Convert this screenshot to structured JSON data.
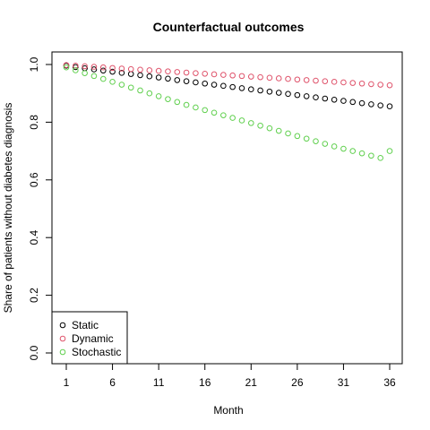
{
  "chart_data": {
    "type": "scatter",
    "title": "Counterfactual outcomes",
    "xlabel": "Month",
    "ylabel": "Share of patients without diabetes diagnosis",
    "xlim": [
      1,
      36
    ],
    "ylim": [
      0,
      1
    ],
    "x_ticks": [
      1,
      6,
      11,
      16,
      21,
      26,
      31,
      36
    ],
    "x_tick_labels": [
      "1",
      "6",
      "11",
      "16",
      "21",
      "26",
      "31",
      "36"
    ],
    "y_ticks": [
      0,
      0.2,
      0.4,
      0.6,
      0.8,
      1
    ],
    "y_tick_labels": [
      "0.0",
      "0.2",
      "0.4",
      "0.6",
      "0.8",
      "1.0"
    ],
    "grid": false,
    "legend_position": "bottom-left",
    "x": [
      1,
      2,
      3,
      4,
      5,
      6,
      7,
      8,
      9,
      10,
      11,
      12,
      13,
      14,
      15,
      16,
      17,
      18,
      19,
      20,
      21,
      22,
      23,
      24,
      25,
      26,
      27,
      28,
      29,
      30,
      31,
      32,
      33,
      34,
      35,
      36
    ],
    "series": [
      {
        "name": "Static",
        "color": "#000000",
        "values": [
          0.996,
          0.991,
          0.987,
          0.983,
          0.979,
          0.975,
          0.971,
          0.967,
          0.963,
          0.959,
          0.955,
          0.951,
          0.946,
          0.942,
          0.938,
          0.934,
          0.93,
          0.926,
          0.922,
          0.918,
          0.914,
          0.91,
          0.906,
          0.902,
          0.898,
          0.894,
          0.89,
          0.886,
          0.882,
          0.878,
          0.874,
          0.87,
          0.866,
          0.862,
          0.858,
          0.855
        ]
      },
      {
        "name": "Dynamic",
        "color": "#DF536B",
        "values": [
          0.998,
          0.996,
          0.994,
          0.992,
          0.99,
          0.988,
          0.986,
          0.984,
          0.982,
          0.98,
          0.978,
          0.976,
          0.974,
          0.972,
          0.97,
          0.968,
          0.966,
          0.964,
          0.962,
          0.96,
          0.958,
          0.956,
          0.954,
          0.952,
          0.95,
          0.948,
          0.946,
          0.944,
          0.942,
          0.94,
          0.938,
          0.936,
          0.934,
          0.932,
          0.93,
          0.928
        ]
      },
      {
        "name": "Stochastic",
        "color": "#61D04F",
        "values": [
          0.99,
          0.98,
          0.97,
          0.96,
          0.95,
          0.94,
          0.93,
          0.92,
          0.91,
          0.9,
          0.89,
          0.88,
          0.87,
          0.86,
          0.851,
          0.842,
          0.833,
          0.824,
          0.815,
          0.806,
          0.797,
          0.788,
          0.779,
          0.77,
          0.761,
          0.752,
          0.743,
          0.734,
          0.725,
          0.716,
          0.708,
          0.7,
          0.692,
          0.684,
          0.676,
          0.7
        ]
      }
    ]
  }
}
